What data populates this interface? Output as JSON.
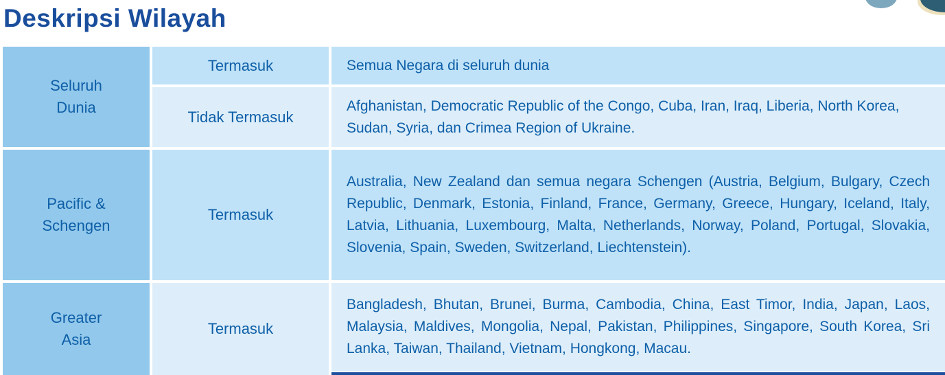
{
  "page": {
    "title": "Deskripsi Wilayah"
  },
  "colors": {
    "title_text": "#1a4e9c",
    "body_text": "#0e5fa8",
    "region_column_bg": "#92c8eb",
    "row_shade_a_bg": "#bfe2f8",
    "row_shade_b_bg": "#ddeefa",
    "next_row_bar": "#1d4f9c",
    "blob_steel": "#7ca7bd",
    "blob_dark_teal": "#2e5e74",
    "blob_cream_edge": "#ede1bd"
  },
  "table": {
    "rows": [
      {
        "region": "Seluruh Dunia",
        "region_lines": [
          "Seluruh",
          "Dunia"
        ],
        "entries": [
          {
            "status": "Termasuk",
            "description": "Semua Negara di seluruh dunia"
          },
          {
            "status": "Tidak Termasuk",
            "description": "Afghanistan, Democratic Republic of the Congo, Cuba, Iran, Iraq, Liberia, North Korea, Sudan, Syria, dan Crimea Region of Ukraine."
          }
        ]
      },
      {
        "region": "Pacific & Schengen",
        "region_lines": [
          "Pacific &",
          "Schengen"
        ],
        "entries": [
          {
            "status": "Termasuk",
            "description": "Australia, New Zealand dan semua negara Schengen (Austria, Belgium, Bulgary, Czech Republic, Denmark, Estonia, Finland, France, Germany, Greece, Hungary, Iceland, Italy, Latvia, Lithuania, Luxembourg, Malta, Netherlands, Norway, Poland, Portugal, Slovakia, Slovenia, Spain, Sweden, Switzerland, Liechtenstein)."
          }
        ]
      },
      {
        "region": "Greater Asia",
        "region_lines": [
          "Greater",
          "Asia"
        ],
        "entries": [
          {
            "status": "Termasuk",
            "description": "Bangladesh, Bhutan, Brunei, Burma, Cambodia, China, East Timor, India, Japan, Laos, Malaysia, Maldives, Mongolia, Nepal, Pakistan, Philippines, Singapore, South Korea, Sri Lanka, Taiwan, Thailand, Vietnam, Hongkong, Macau."
          }
        ]
      }
    ]
  }
}
